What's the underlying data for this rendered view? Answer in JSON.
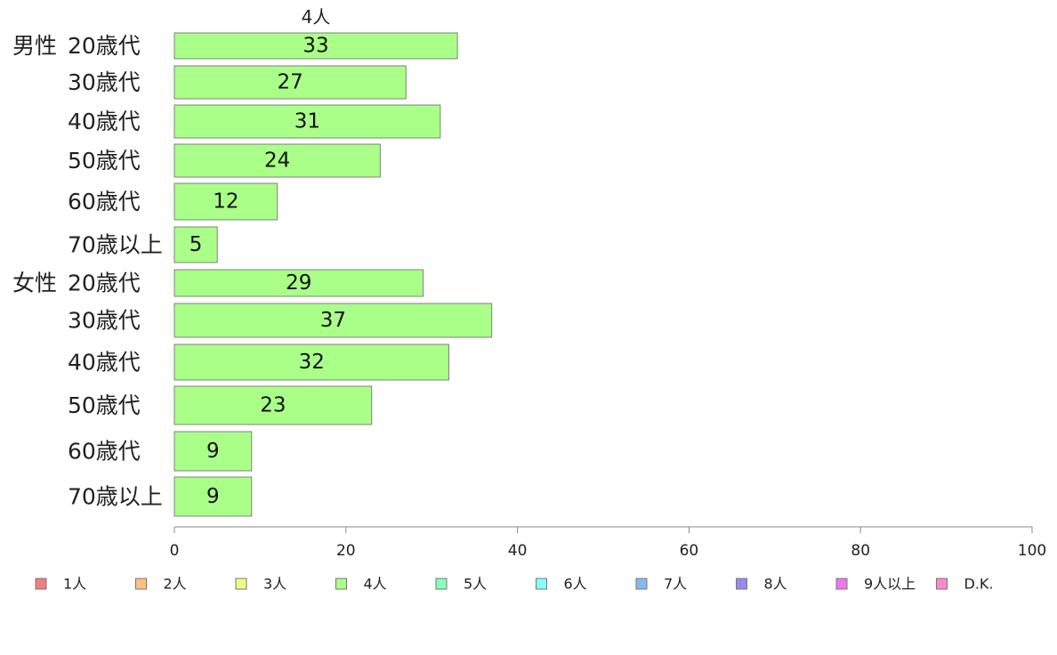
{
  "chart_data": {
    "type": "bar",
    "orientation": "horizontal",
    "title": "4人",
    "groups": [
      "男性",
      "女性"
    ],
    "categories": [
      {
        "group": "男性",
        "label": "20歳代"
      },
      {
        "group": "",
        "label": "30歳代"
      },
      {
        "group": "",
        "label": "40歳代"
      },
      {
        "group": "",
        "label": "50歳代"
      },
      {
        "group": "",
        "label": "60歳代"
      },
      {
        "group": "",
        "label": "70歳以上"
      },
      {
        "group": "女性",
        "label": "20歳代"
      },
      {
        "group": "",
        "label": "30歳代"
      },
      {
        "group": "",
        "label": "40歳代"
      },
      {
        "group": "",
        "label": "50歳代"
      },
      {
        "group": "",
        "label": "60歳代"
      },
      {
        "group": "",
        "label": "70歳以上"
      }
    ],
    "series": [
      {
        "name": "4人",
        "color": "#aaff88",
        "values": [
          33,
          27,
          31,
          24,
          12,
          5,
          29,
          37,
          32,
          23,
          9,
          9
        ]
      }
    ],
    "xlim": [
      0,
      100
    ],
    "xticks": [
      0,
      20,
      40,
      60,
      80,
      100
    ],
    "grid": false,
    "legend_position": "bottom",
    "legend": [
      {
        "label": "1人",
        "color": "#f08080"
      },
      {
        "label": "2人",
        "color": "#ffc080"
      },
      {
        "label": "3人",
        "color": "#eeff88"
      },
      {
        "label": "4人",
        "color": "#aaff88"
      },
      {
        "label": "5人",
        "color": "#88ffbb"
      },
      {
        "label": "6人",
        "color": "#88ffff"
      },
      {
        "label": "7人",
        "color": "#88b8f0"
      },
      {
        "label": "8人",
        "color": "#9988ee"
      },
      {
        "label": "9人以上",
        "color": "#ee77ee"
      },
      {
        "label": "D.K.",
        "color": "#ff88cc"
      }
    ]
  }
}
